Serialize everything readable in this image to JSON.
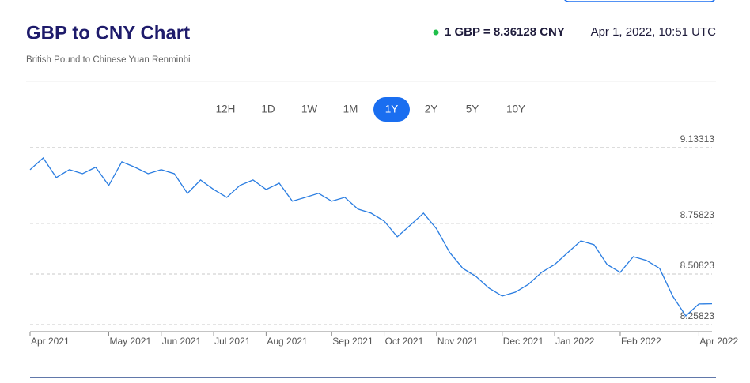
{
  "header": {
    "title": "GBP to CNY Chart",
    "subtitle": "British Pound to Chinese Yuan Renminbi",
    "rate": "1 GBP = 8.36128 CNY",
    "timestamp": "Apr 1, 2022, 10:51 UTC"
  },
  "tabs": [
    "12H",
    "1D",
    "1W",
    "1M",
    "1Y",
    "2Y",
    "5Y",
    "10Y"
  ],
  "active_tab": "1Y",
  "chart_data": {
    "type": "line",
    "color": "#2a7de1",
    "categories": [
      "Apr 2021",
      null,
      null,
      null,
      null,
      null,
      "May 2021",
      null,
      null,
      null,
      "Jun 2021",
      null,
      null,
      null,
      "Jul 2021",
      null,
      null,
      null,
      "Aug 2021",
      null,
      null,
      null,
      null,
      "Sep 2021",
      null,
      null,
      null,
      "Oct 2021",
      null,
      null,
      null,
      "Nov 2021",
      null,
      null,
      null,
      null,
      "Dec 2021",
      null,
      null,
      null,
      "Jan 2022",
      null,
      null,
      null,
      null,
      "Feb 2022",
      null,
      null,
      null,
      null,
      null,
      "Apr 2022",
      null
    ],
    "values": [
      9.024,
      9.082,
      8.985,
      9.024,
      9.004,
      9.036,
      8.946,
      9.063,
      9.036,
      9.004,
      9.024,
      9.004,
      8.907,
      8.973,
      8.926,
      8.887,
      8.946,
      8.973,
      8.926,
      8.957,
      8.868,
      8.887,
      8.907,
      8.868,
      8.887,
      8.829,
      8.809,
      8.77,
      8.692,
      8.75,
      8.809,
      8.731,
      8.614,
      8.536,
      8.496,
      8.438,
      8.399,
      8.418,
      8.457,
      8.516,
      8.555,
      8.614,
      8.672,
      8.653,
      8.555,
      8.516,
      8.594,
      8.575,
      8.536,
      8.399,
      8.301,
      8.36,
      8.361
    ],
    "ylim": [
      8.223,
      9.16
    ],
    "yticks": [
      8.25823,
      8.50823,
      8.75823,
      9.13313
    ],
    "grid": true
  }
}
